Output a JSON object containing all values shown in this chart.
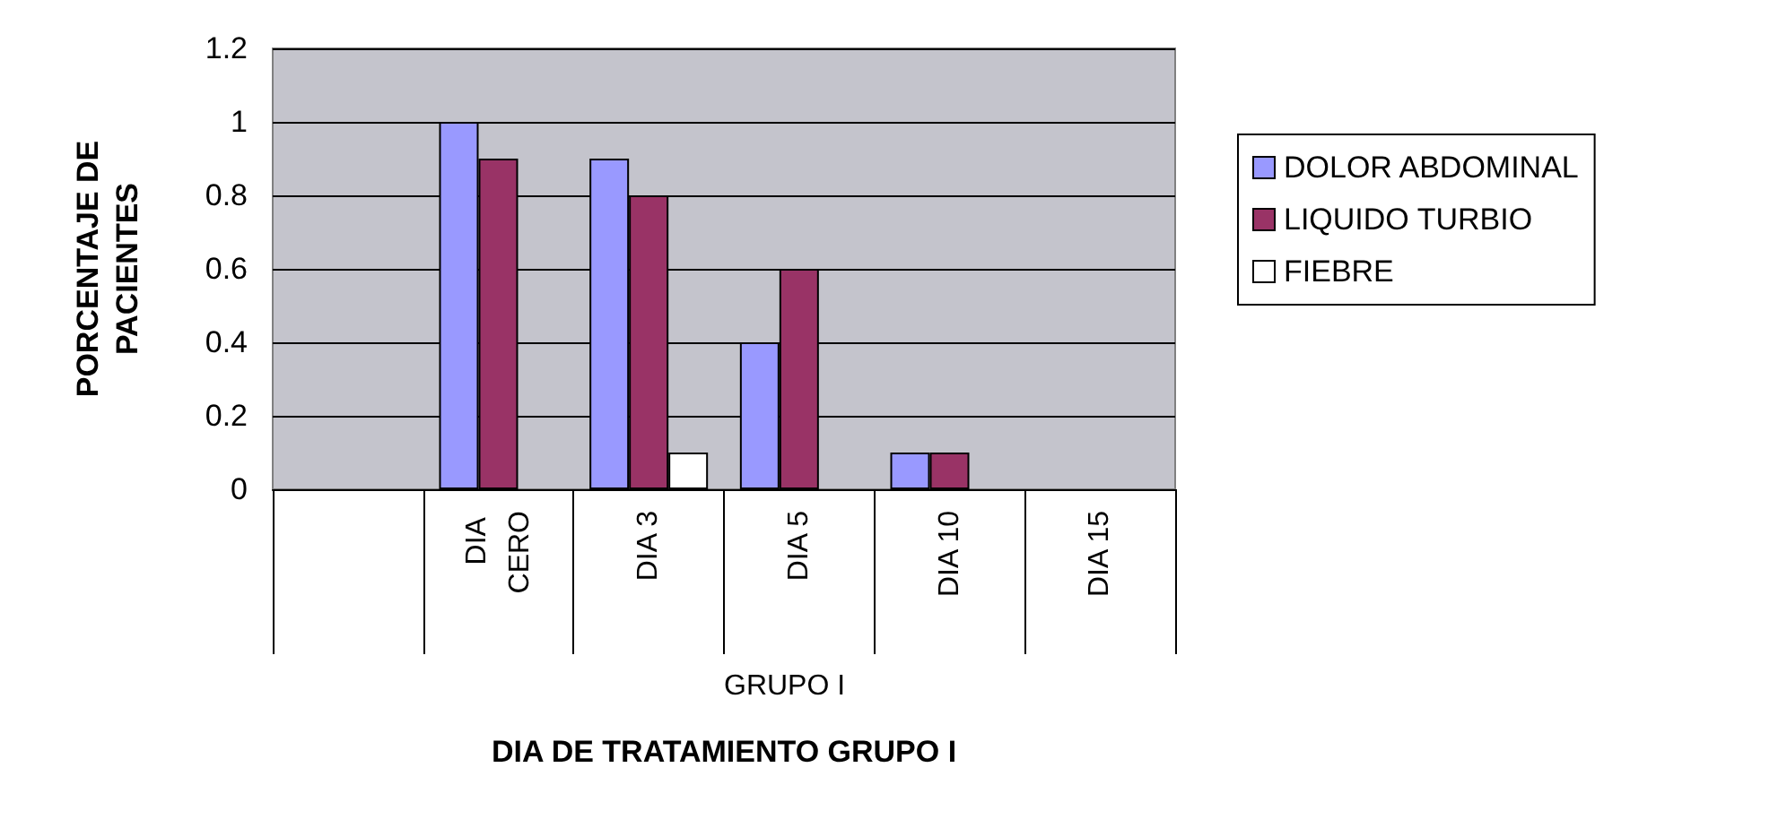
{
  "chart_data": {
    "type": "bar",
    "xlabel": "DIA DE TRATAMIENTO GRUPO I",
    "ylabel": "PORCENTAJE DE PACIENTES",
    "annotations": [
      "GRUPO I"
    ],
    "categories": [
      null,
      "DIA CERO",
      "DIA 3",
      "DIA 5",
      "DIA 10",
      "DIA 15"
    ],
    "series": [
      {
        "name": "DOLOR ABDOMINAL",
        "color": "#9999ff",
        "values": [
          null,
          1,
          0.9,
          0.4,
          0.1,
          null
        ]
      },
      {
        "name": "LIQUIDO TURBIO",
        "color": "#993366",
        "values": [
          null,
          0.9,
          0.8,
          0.6,
          0.1,
          null
        ]
      },
      {
        "name": "FIEBRE",
        "color": "#ffffff",
        "values": [
          null,
          null,
          0.1,
          null,
          null,
          null
        ]
      }
    ],
    "ylim": [
      0,
      1.2
    ],
    "yticks": [
      0,
      0.2,
      0.4,
      0.6,
      0.8,
      1,
      1.2
    ],
    "grid": "y",
    "legend": "right"
  }
}
